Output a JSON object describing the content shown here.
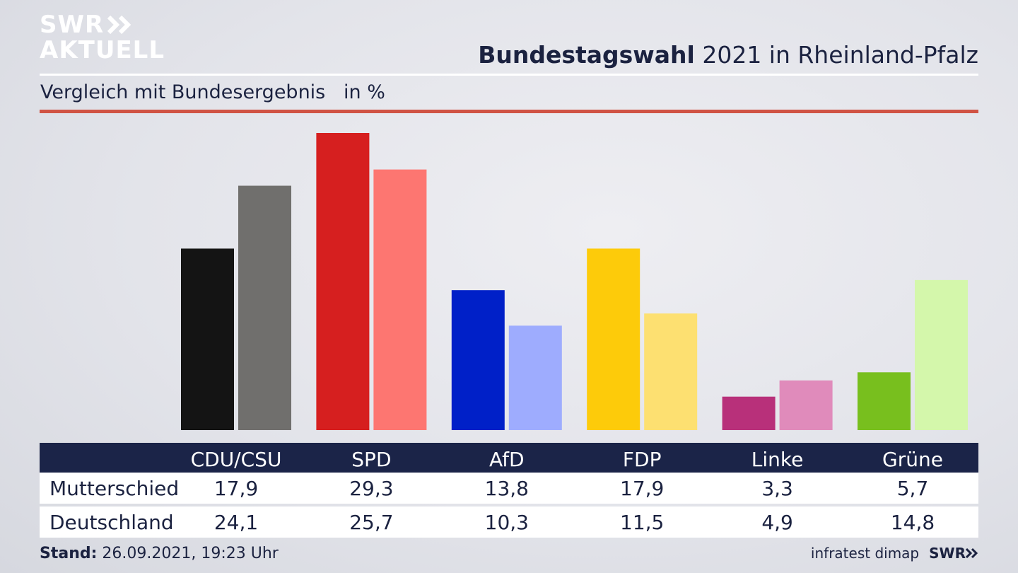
{
  "header": {
    "logo_line1": "SWR",
    "logo_line2": "AKTUELL",
    "title_bold": "Bundestagswahl",
    "title_rest": " 2021 in Rheinland-Pfalz",
    "subtitle": "Vergleich mit Bundesergebnis   in %"
  },
  "chart_data": {
    "type": "bar",
    "categories": [
      "CDU/CSU",
      "SPD",
      "AfD",
      "FDP",
      "Linke",
      "Grüne"
    ],
    "series": [
      {
        "name": "Mutterschied",
        "values": [
          17.9,
          29.3,
          13.8,
          17.9,
          3.3,
          5.7
        ],
        "colors": [
          "#141414",
          "#d61f1f",
          "#0020c8",
          "#fdcb0a",
          "#b8307a",
          "#78bf1e"
        ]
      },
      {
        "name": "Deutschland",
        "values": [
          24.1,
          25.7,
          10.3,
          11.5,
          4.9,
          14.8
        ],
        "colors": [
          "#706f6d",
          "#fd7671",
          "#9eacfe",
          "#fde071",
          "#e08bbb",
          "#d4f7ab"
        ]
      }
    ],
    "ylim": [
      0,
      29.3
    ]
  },
  "table": {
    "headers": [
      "CDU/CSU",
      "SPD",
      "AfD",
      "FDP",
      "Linke",
      "Grüne"
    ],
    "rows": [
      {
        "label": "Mutterschied",
        "values": [
          "17,9",
          "29,3",
          "13,8",
          "17,9",
          "3,3",
          "5,7"
        ]
      },
      {
        "label": "Deutschland",
        "values": [
          "24,1",
          "25,7",
          "10,3",
          "11,5",
          "4,9",
          "14,8"
        ]
      }
    ]
  },
  "footer": {
    "stand_label": "Stand:",
    "stand_value": " 26.09.2021, 19:23 Uhr",
    "credit": "infratest dimap",
    "brand": "SWR"
  }
}
